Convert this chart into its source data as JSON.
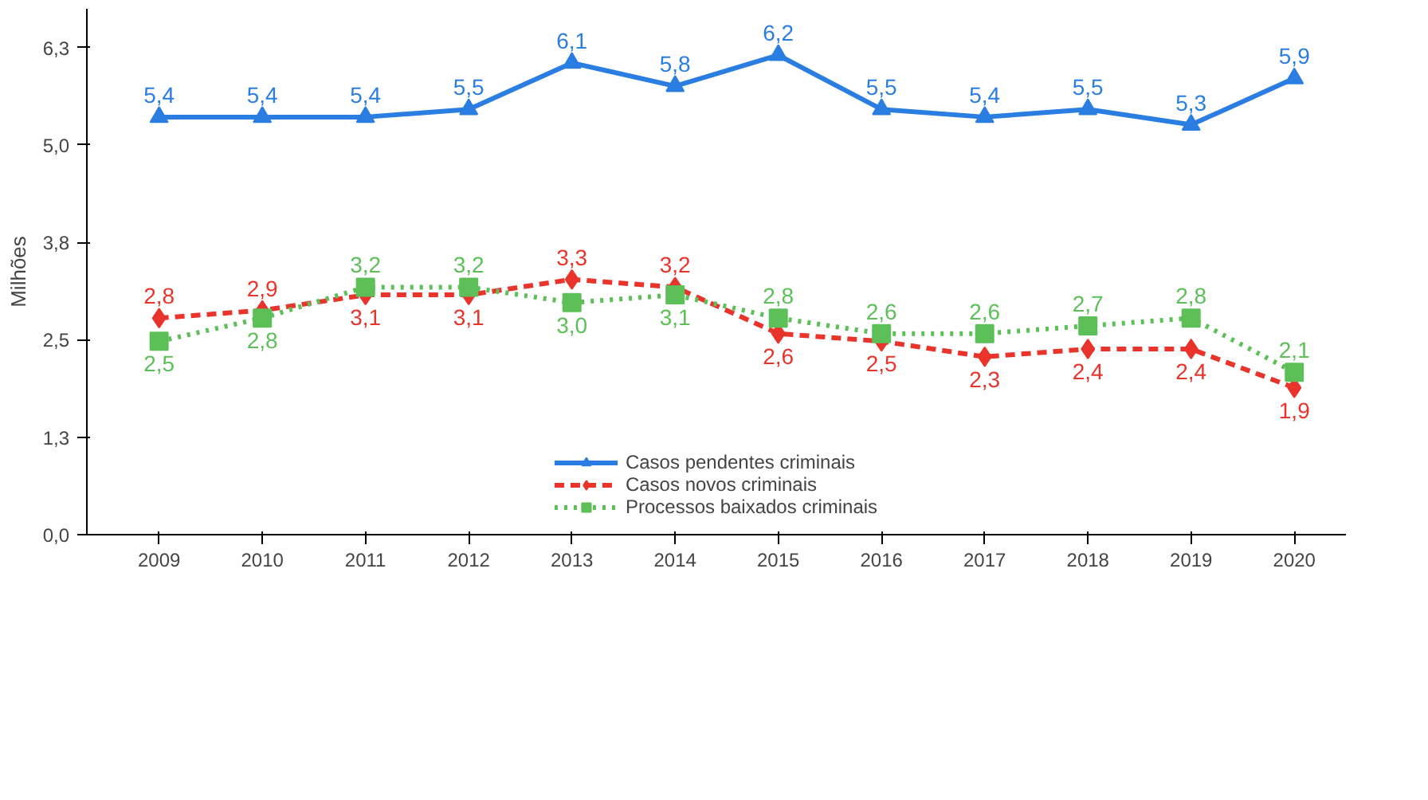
{
  "chart_data": {
    "type": "line",
    "ylabel": "Milhões",
    "categories": [
      "2009",
      "2010",
      "2011",
      "2012",
      "2013",
      "2014",
      "2015",
      "2016",
      "2017",
      "2018",
      "2019",
      "2020"
    ],
    "ylim": [
      0,
      6.8
    ],
    "yticks": [
      {
        "value": 0,
        "label": "0,0"
      },
      {
        "value": 1.26,
        "label": "1,3"
      },
      {
        "value": 2.52,
        "label": "2,5"
      },
      {
        "value": 3.78,
        "label": "3,8"
      },
      {
        "value": 5.04,
        "label": "5,0"
      },
      {
        "value": 6.3,
        "label": "6,3"
      }
    ],
    "series": [
      {
        "name": "Casos pendentes criminais",
        "color": "#2a7de1",
        "marker": "triangle",
        "line_style": "solid",
        "values": [
          5.4,
          5.4,
          5.4,
          5.5,
          6.1,
          5.8,
          6.2,
          5.5,
          5.4,
          5.5,
          5.3,
          5.9
        ],
        "value_labels": [
          "5,4",
          "5,4",
          "5,4",
          "5,5",
          "6,1",
          "5,8",
          "6,2",
          "5,5",
          "5,4",
          "5,5",
          "5,3",
          "5,9"
        ]
      },
      {
        "name": "Casos novos criminais",
        "color": "#e8342b",
        "marker": "diamond",
        "line_style": "dashed",
        "values": [
          2.8,
          2.9,
          3.1,
          3.1,
          3.3,
          3.2,
          2.6,
          2.5,
          2.3,
          2.4,
          2.4,
          1.9
        ],
        "value_labels": [
          "2,8",
          "2,9",
          "3,1",
          "3,1",
          "3,3",
          "3,2",
          "2,6",
          "2,5",
          "2,3",
          "2,4",
          "2,4",
          "1,9"
        ]
      },
      {
        "name": "Processos baixados criminais",
        "color": "#5cbf57",
        "marker": "square",
        "line_style": "dotted",
        "values": [
          2.5,
          2.8,
          3.2,
          3.2,
          3.0,
          3.1,
          2.8,
          2.6,
          2.6,
          2.7,
          2.8,
          2.1
        ],
        "value_labels": [
          "2,5",
          "2,8",
          "3,2",
          "3,2",
          "3,0",
          "3,1",
          "2,8",
          "2,6",
          "2,6",
          "2,7",
          "2,8",
          "2,1"
        ]
      }
    ],
    "grid": false,
    "legend": "bottom"
  }
}
